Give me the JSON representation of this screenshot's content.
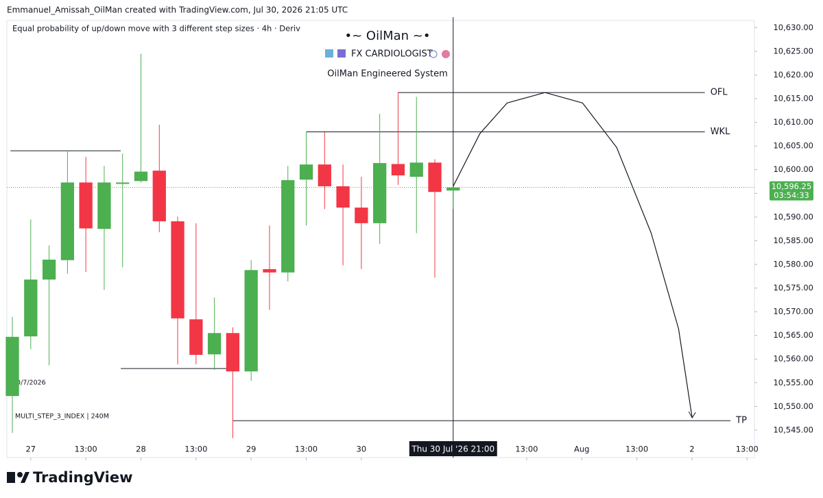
{
  "chart_data": {
    "type": "candlestick",
    "header": "Emmanuel_Amissah_OilMan created with TradingView.com, Jul 30, 2026 21:05 UTC",
    "legend_text": "Equal probability of up/down move with 3 different step sizes · 4h · Deriv",
    "title": "•~ OilMan ~•",
    "subtitle": "FX CARDIOLOGIST",
    "subtitle2": "OilMan Engineered System",
    "date_note": "30/7/2026",
    "symbol_note": "MULTI_STEP_3_INDEX | 240M",
    "brand": "TradingView",
    "up_color": "#4caf50",
    "down_color": "#f23645",
    "x": [
      0,
      1,
      2,
      3,
      4,
      5,
      6,
      7,
      8,
      9,
      10,
      11,
      12,
      13,
      14,
      15,
      16,
      17,
      18,
      19,
      20,
      21,
      22,
      23,
      24
    ],
    "open": [
      10552.2,
      10564.8,
      10576.8,
      10580.9,
      10597.3,
      10587.5,
      10597.0,
      10597.6,
      10599.8,
      10589.1,
      10568.4,
      10561.0,
      10565.5,
      10557.4,
      10579.0,
      10578.3,
      10597.9,
      10601.1,
      10596.5,
      10592.0,
      10588.7,
      10601.2,
      10598.5,
      10601.5,
      10595.6
    ],
    "high": [
      10568.9,
      10589.5,
      10584.0,
      10604.1,
      10602.7,
      10600.8,
      10603.4,
      10624.5,
      10609.5,
      10590.1,
      10588.7,
      10573.0,
      10566.7,
      10580.9,
      10588.2,
      10600.8,
      10608.0,
      10607.9,
      10601.1,
      10598.5,
      10611.8,
      10616.4,
      10615.4,
      10602.2,
      10596.3
    ],
    "low": [
      10544.4,
      10562.1,
      10558.7,
      10578.0,
      10578.4,
      10574.6,
      10579.4,
      10597.3,
      10586.8,
      10558.9,
      10558.9,
      10557.7,
      10543.3,
      10555.4,
      10570.4,
      10576.4,
      10588.2,
      10591.7,
      10579.8,
      10579.0,
      10584.3,
      10596.8,
      10586.6,
      10577.2,
      10591.7
    ],
    "close": [
      10564.7,
      10576.8,
      10581.0,
      10597.3,
      10587.6,
      10597.3,
      10597.3,
      10599.6,
      10589.1,
      10568.6,
      10560.9,
      10565.5,
      10557.4,
      10578.8,
      10578.3,
      10597.8,
      10601.1,
      10596.5,
      10592.0,
      10588.7,
      10601.4,
      10598.8,
      10601.5,
      10595.3,
      10596.25
    ],
    "xlim": [
      -0.3,
      40.4
    ],
    "ylim": [
      10539.2,
      10631.5
    ],
    "xticks": [
      {
        "value": 1,
        "label": "27"
      },
      {
        "value": 4,
        "label": "13:00"
      },
      {
        "value": 7,
        "label": "28"
      },
      {
        "value": 10,
        "label": "13:00"
      },
      {
        "value": 13,
        "label": "29"
      },
      {
        "value": 16,
        "label": "13:00"
      },
      {
        "value": 19,
        "label": "30"
      },
      {
        "value": 28,
        "label": "13:00"
      },
      {
        "value": 31,
        "label": "Aug"
      },
      {
        "value": 34,
        "label": "13:00"
      },
      {
        "value": 37,
        "label": "2"
      },
      {
        "value": 40,
        "label": "13:00"
      }
    ],
    "yticks": [
      {
        "value": 10545,
        "label": "10,545.00"
      },
      {
        "value": 10550,
        "label": "10,550.00"
      },
      {
        "value": 10555,
        "label": "10,555.00"
      },
      {
        "value": 10560,
        "label": "10,560.00"
      },
      {
        "value": 10565,
        "label": "10,565.00"
      },
      {
        "value": 10570,
        "label": "10,570.00"
      },
      {
        "value": 10575,
        "label": "10,575.00"
      },
      {
        "value": 10580,
        "label": "10,580.00"
      },
      {
        "value": 10585,
        "label": "10,585.00"
      },
      {
        "value": 10590,
        "label": "10,590.00"
      },
      {
        "value": 10595,
        "label": "10,595.00"
      },
      {
        "value": 10600,
        "label": "10,600.00"
      },
      {
        "value": 10605,
        "label": "10,605.00"
      },
      {
        "value": 10610,
        "label": "10,610.00"
      },
      {
        "value": 10615,
        "label": "10,615.00"
      },
      {
        "value": 10620,
        "label": "10,620.00"
      },
      {
        "value": 10625,
        "label": "10,625.00"
      },
      {
        "value": 10630,
        "label": "10,630.00"
      }
    ],
    "last_price": {
      "value": 10596.25,
      "label": "10,596.25"
    },
    "countdown": "03:54:33",
    "crosshair": {
      "value": 24,
      "label": "Thu 30 Jul '26  21:00"
    },
    "levels": [
      {
        "label": "OFL",
        "value": 10616.3,
        "x": [
          21,
          37.7
        ]
      },
      {
        "label": "WKL",
        "value": 10608.0,
        "x": [
          16,
          37.7
        ]
      },
      {
        "label": "TP",
        "value": 10547.0,
        "x": [
          12,
          39.1
        ]
      },
      {
        "value": 10604.0,
        "x": [
          -0.1,
          5.9
        ]
      },
      {
        "value": 10558.0,
        "x": [
          5.9,
          11.9
        ]
      }
    ],
    "projection": {
      "x": [
        24,
        25.45,
        26.94,
        29,
        31.04,
        32.9,
        34.78,
        36.27,
        37.01
      ],
      "y": [
        10596.5,
        10607.6,
        10614.1,
        10616.3,
        10614.1,
        10604.7,
        10586.6,
        10566.4,
        10547.6
      ]
    }
  }
}
